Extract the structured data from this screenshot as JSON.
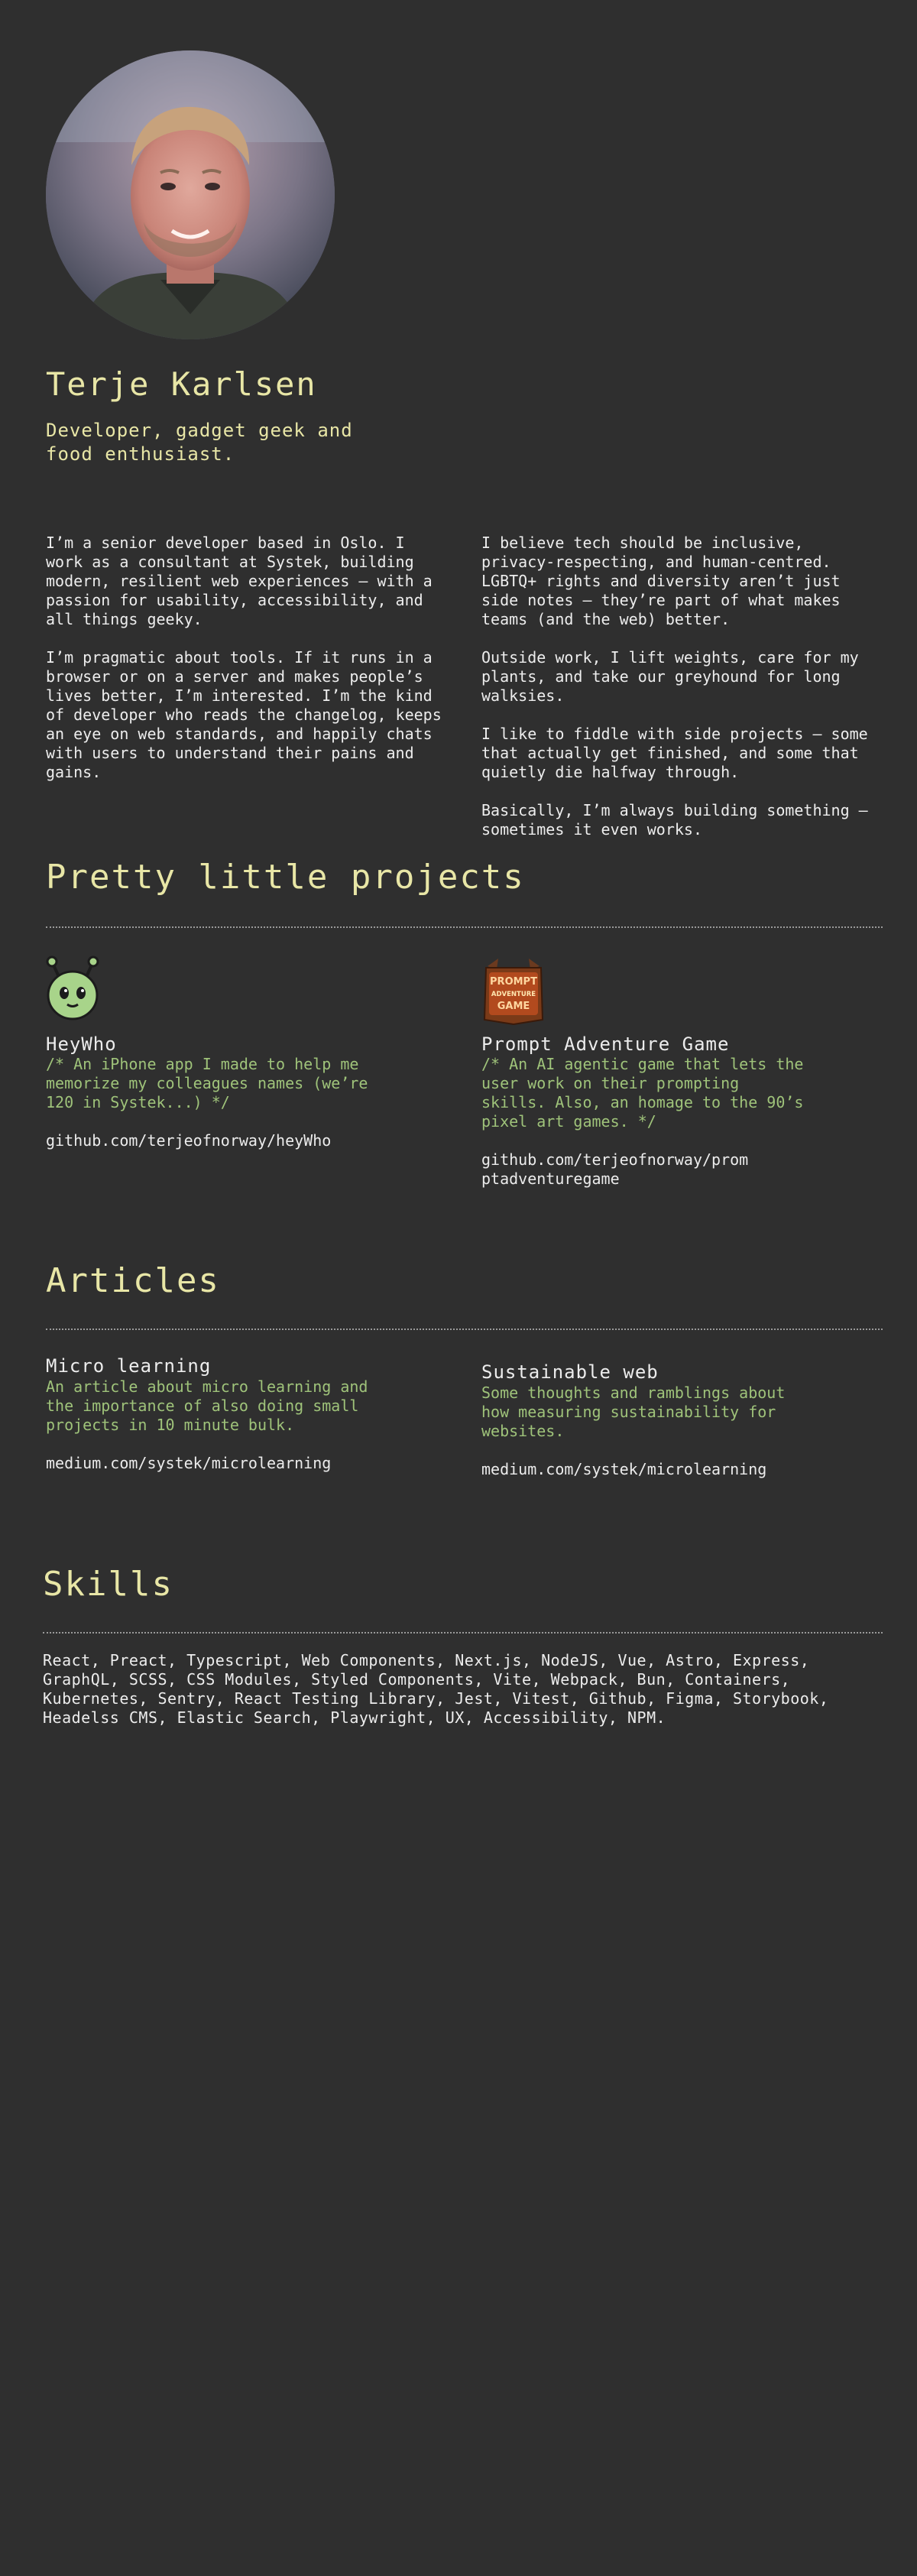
{
  "header": {
    "name": "Terje Karlsen",
    "tagline": "Developer, gadget geek and food enthusiast."
  },
  "bio": {
    "left": [
      "I’m a senior developer based in Oslo. I work as a consultant at Systek, building modern, resilient web experiences — with a passion for usability, accessibility, and all things geeky.",
      "I’m pragmatic about tools. If it runs in a browser or on a server and makes people’s lives better, I’m interested. I’m the kind of developer who reads the changelog, keeps an eye on web standards, and happily chats with users to understand their pains and gains."
    ],
    "right": [
      "I believe tech should be inclusive, privacy-respecting, and human-centred. LGBTQ+ rights and diversity aren’t just side notes — they’re part of what makes teams (and the web) better.",
      "Outside work, I lift weights, care for my plants, and take our greyhound for long walksies.",
      "I like to fiddle with side projects — some that actually get finished, and some that quietly die halfway through.",
      "Basically, I’m always building something — sometimes it even works."
    ]
  },
  "projects": {
    "title": "Pretty little projects",
    "items": [
      {
        "icon": "alien-icon",
        "title": "HeyWho",
        "desc": "/* An iPhone app I made to help me memorize my colleagues names (we’re 120 in Systek...) */",
        "link": "github.com/terjeofnorway/heyWho"
      },
      {
        "icon": "prompt-adventure-game-logo",
        "logo_text": [
          "PROMPT",
          "ADVENTURE",
          "GAME"
        ],
        "title": "Prompt Adventure Game",
        "desc": "/* An AI agentic game that lets the user work on their prompting skills. Also, an homage to the 90’s pixel art games. */",
        "link": "github.com/terjeofnorway/promptadventuregame"
      }
    ]
  },
  "articles": {
    "title": "Articles",
    "items": [
      {
        "title": "Micro learning",
        "desc": "An article about micro learning and the importance of also doing small projects in 10 minute bulk.",
        "link": "medium.com/systek/microlearning"
      },
      {
        "title": "Sustainable web",
        "desc": "Some thoughts and ramblings about how measuring sustainability for websites.",
        "link": "medium.com/systek/microlearning"
      }
    ]
  },
  "skills": {
    "title": "Skills",
    "text": "React, Preact, Typescript, Web Components, Next.js, NodeJS, Vue, Astro, Express, GraphQL, SCSS, CSS Modules, Styled Components, Vite, Webpack, Bun, Containers, Kubernetes, Sentry, React Testing Library, Jest, Vitest, Github, Figma, Storybook, Headelss CMS, Elastic Search, Playwright, UX, Accessibility, NPM."
  },
  "colors": {
    "background": "#2f2f2f",
    "heading": "#e8e6a6",
    "comment": "#9fc37a",
    "text": "#ececec"
  }
}
